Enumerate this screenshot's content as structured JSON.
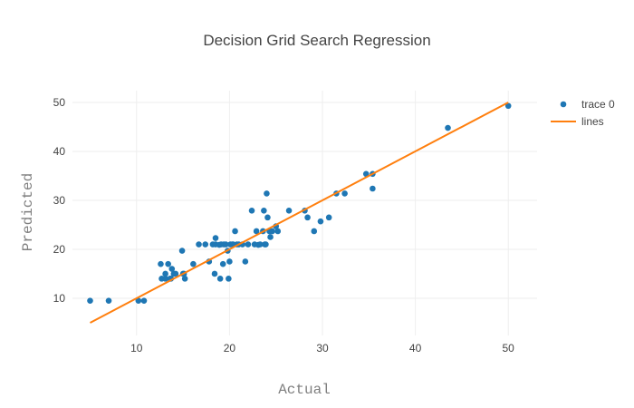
{
  "chart_data": {
    "type": "scatter",
    "title": "Decision Grid Search Regression",
    "xlabel": "Actual",
    "ylabel": "Predicted",
    "xlim": [
      3.1,
      53.1
    ],
    "ylim": [
      2.4,
      52.4
    ],
    "xticks": [
      10,
      20,
      30,
      40,
      50
    ],
    "yticks": [
      10,
      20,
      30,
      40,
      50
    ],
    "grid": true,
    "legend_position": "top-right",
    "series": [
      {
        "name": "trace 0",
        "type": "markers",
        "color": "#1f77b4",
        "x": [
          5.0,
          7.0,
          10.2,
          10.8,
          12.6,
          12.7,
          13.1,
          13.1,
          13.4,
          13.6,
          13.7,
          13.8,
          14.0,
          14.2,
          14.9,
          15.0,
          15.1,
          15.2,
          16.1,
          16.7,
          17.4,
          17.8,
          18.2,
          18.4,
          18.5,
          18.5,
          18.9,
          19.0,
          19.1,
          19.3,
          19.4,
          19.6,
          19.8,
          19.9,
          20.0,
          20.1,
          20.3,
          20.4,
          20.6,
          20.8,
          21.0,
          21.4,
          21.7,
          22.0,
          22.4,
          22.7,
          22.9,
          23.1,
          23.3,
          23.6,
          23.7,
          23.8,
          23.9,
          24.0,
          24.1,
          24.3,
          24.4,
          24.6,
          25.0,
          25.2,
          26.4,
          28.1,
          28.4,
          29.1,
          29.8,
          30.7,
          31.5,
          32.4,
          34.7,
          35.4,
          35.4,
          43.5,
          50.0
        ],
        "y": [
          9.5,
          9.5,
          9.5,
          9.5,
          17.0,
          14.0,
          15.0,
          14.0,
          17.0,
          14.0,
          14.0,
          16.0,
          15.0,
          15.0,
          19.7,
          15.0,
          15.0,
          14.0,
          17.0,
          21.0,
          21.0,
          17.5,
          21.0,
          15.0,
          22.3,
          21.0,
          20.9,
          14.0,
          21.0,
          17.0,
          21.0,
          21.0,
          19.7,
          14.0,
          17.5,
          21.0,
          21.0,
          21.0,
          23.7,
          21.0,
          21.0,
          21.0,
          17.5,
          21.0,
          27.9,
          21.0,
          23.7,
          20.9,
          21.0,
          23.7,
          27.9,
          21.0,
          21.0,
          31.4,
          26.5,
          23.7,
          22.5,
          23.7,
          24.7,
          23.7,
          27.9,
          27.9,
          26.5,
          23.7,
          25.7,
          26.5,
          31.4,
          31.4,
          35.4,
          35.4,
          32.4,
          44.8,
          49.3
        ]
      },
      {
        "name": "lines",
        "type": "line",
        "color": "#ff7f0e",
        "x": [
          5,
          50
        ],
        "y": [
          5,
          50
        ]
      }
    ]
  }
}
